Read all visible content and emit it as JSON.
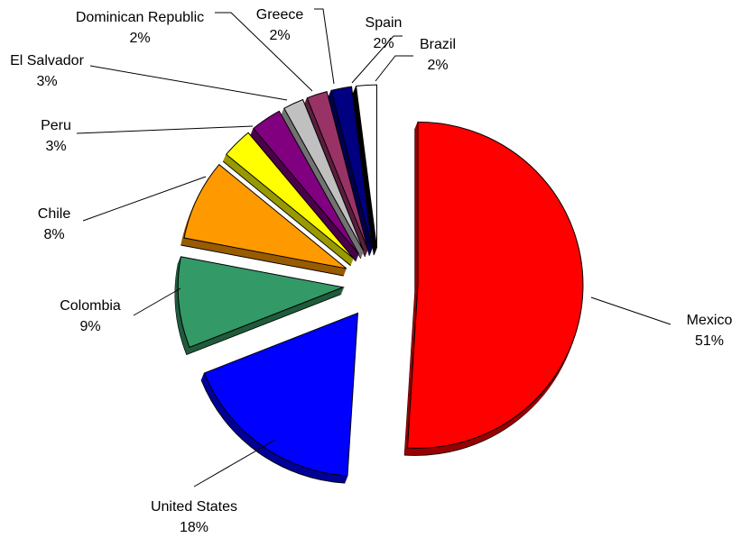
{
  "chart_data": {
    "type": "pie",
    "style": "3d-exploded",
    "start": "12 o'clock, clockwise",
    "slices": [
      {
        "label": "Mexico",
        "value": 51,
        "pct_label": "51%",
        "color": "#FF0000",
        "side": "#990000"
      },
      {
        "label": "United States",
        "value": 18,
        "pct_label": "18%",
        "color": "#0000FF",
        "side": "#000099"
      },
      {
        "label": "Colombia",
        "value": 9,
        "pct_label": "9%",
        "color": "#339966",
        "side": "#1F5C3D"
      },
      {
        "label": "Chile",
        "value": 8,
        "pct_label": "8%",
        "color": "#FF9900",
        "side": "#995C00"
      },
      {
        "label": "Peru",
        "value": 3,
        "pct_label": "3%",
        "color": "#FFFF00",
        "side": "#999900"
      },
      {
        "label": "El Salvador",
        "value": 3,
        "pct_label": "3%",
        "color": "#800080",
        "side": "#4D004D"
      },
      {
        "label": "Dominican Republic",
        "value": 2,
        "pct_label": "2%",
        "color": "#C0C0C0",
        "side": "#737373"
      },
      {
        "label": "Greece",
        "value": 2,
        "pct_label": "2%",
        "color": "#993366",
        "side": "#5C1F3D"
      },
      {
        "label": "Spain",
        "value": 2,
        "pct_label": "2%",
        "color": "#000080",
        "side": "#00004D"
      },
      {
        "label": "Brazil",
        "value": 2,
        "pct_label": "2%",
        "color": "#FFFFFF",
        "side": "#000000"
      }
    ]
  }
}
